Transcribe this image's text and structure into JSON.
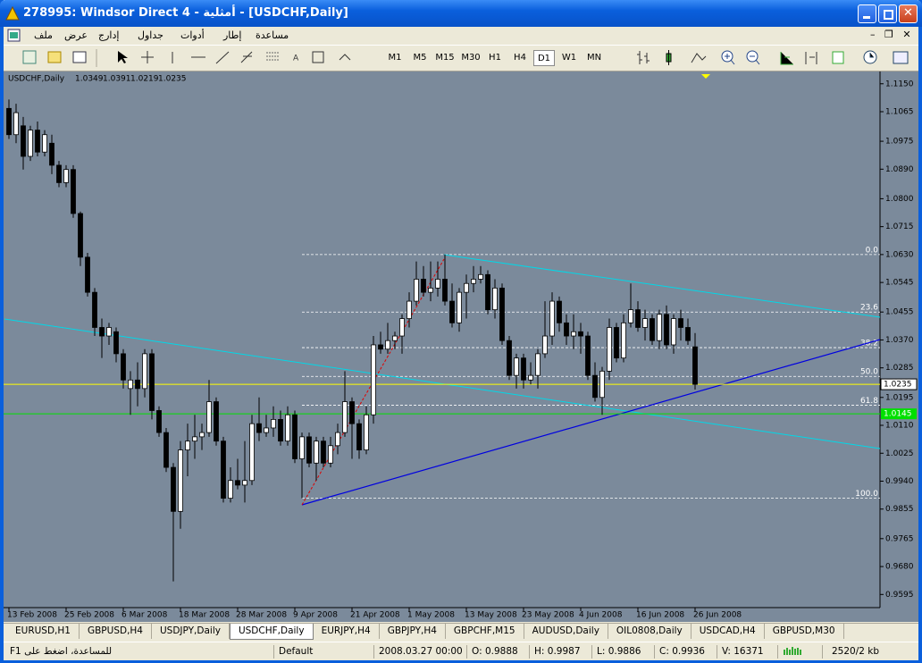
{
  "window": {
    "title": "278995: Windsor Direct 4 - أمثلية - [USDCHF,Daily]"
  },
  "menu": [
    "ملف",
    "عرض",
    "إدارج",
    "جداول",
    "أدوات",
    "إطار",
    "مساعدة"
  ],
  "toolbar": {
    "periods": [
      "M1",
      "M5",
      "M15",
      "M30",
      "H1",
      "H4",
      "D1",
      "W1",
      "MN"
    ],
    "active_period": 6
  },
  "chart_data": {
    "type": "candlestick",
    "title": "USDCHF,Daily",
    "x": [
      "13 Feb 2008",
      null,
      null,
      null,
      null,
      null,
      null,
      null,
      "25 Feb 2008",
      null,
      null,
      null,
      null,
      null,
      null,
      null,
      "6 Mar 2008",
      null,
      null,
      null,
      null,
      null,
      null,
      null,
      "18 Mar 2008",
      null,
      null,
      null,
      null,
      null,
      null,
      null,
      "28 Mar 2008",
      null,
      null,
      null,
      null,
      null,
      null,
      null,
      "9 Apr 2008",
      null,
      null,
      null,
      null,
      null,
      null,
      null,
      "21 Apr 2008",
      null,
      null,
      null,
      null,
      null,
      null,
      null,
      "1 May 2008",
      null,
      null,
      null,
      null,
      null,
      null,
      null,
      "13 May 2008",
      null,
      null,
      null,
      null,
      null,
      null,
      null,
      "23 May 2008",
      null,
      null,
      null,
      null,
      null,
      null,
      null,
      "4 Jun 2008",
      null,
      null,
      null,
      null,
      null,
      null,
      null,
      "16 Jun 2008",
      null,
      null,
      null,
      null,
      null,
      null,
      null,
      "26 Jun 2008"
    ],
    "open": [
      1.1075,
      1.0995,
      1.1022,
      1.0929,
      1.1009,
      1.0942,
      1.0969,
      1.0902,
      1.0849,
      1.0889,
      1.0755,
      1.0622,
      1.0515,
      1.0408,
      1.0382,
      1.0395,
      1.0328,
      1.0222,
      1.0248,
      1.0222,
      1.0328,
      1.0155,
      1.0088,
      0.9982,
      0.9848,
      1.0035,
      1.0062,
      1.0075,
      1.0088,
      1.0182,
      1.0062,
      0.9888,
      0.9942,
      0.9928,
      0.9942,
      1.0115,
      1.0088,
      1.0102,
      1.0128,
      1.0062,
      1.0142,
      1.0008,
      1.0075,
      0.9995,
      1.0062,
      0.9995,
      1.0048,
      1.0088,
      1.0182,
      1.0115,
      1.0035,
      1.0142,
      1.0355,
      1.0342,
      1.0368,
      1.0382,
      1.0435,
      1.0488,
      1.0555,
      1.0515,
      1.0528,
      1.0555,
      1.0488,
      1.0422,
      1.0515,
      1.0542,
      1.0555,
      1.0569,
      1.0462,
      1.0528,
      1.0368,
      1.0262,
      1.0315,
      1.0248,
      1.0262,
      1.0328,
      1.0382,
      1.0488,
      1.0422,
      1.0382,
      1.0395,
      1.0382,
      1.0262,
      1.0195,
      1.0275,
      1.0408,
      1.0315,
      1.0422,
      1.0462,
      1.0408,
      1.0435,
      1.0368,
      1.0448,
      1.0355,
      1.0435,
      1.0408,
      1.0349
    ],
    "high": [
      1.1102,
      1.1089,
      1.1049,
      1.1022,
      1.1035,
      1.1009,
      1.0995,
      1.0915,
      1.0902,
      1.0902,
      1.0761,
      1.0635,
      1.0528,
      1.0435,
      1.0422,
      1.0408,
      1.0342,
      1.0275,
      1.0302,
      1.0342,
      1.0342,
      1.0168,
      1.0102,
      0.9995,
      1.0062,
      1.0115,
      1.0142,
      1.0115,
      1.0248,
      1.0195,
      1.0075,
      0.9982,
      1.0008,
      1.0062,
      1.0142,
      1.0195,
      1.0142,
      1.0168,
      1.0155,
      1.0168,
      1.0155,
      1.0088,
      1.0088,
      1.0075,
      1.0075,
      1.0075,
      1.0115,
      1.0275,
      1.0195,
      1.0128,
      1.0168,
      1.0382,
      1.0395,
      1.0422,
      1.0395,
      1.0448,
      1.0515,
      1.0609,
      1.0595,
      1.0609,
      1.0609,
      1.063,
      1.0542,
      1.0528,
      1.0569,
      1.0595,
      1.0595,
      1.0582,
      1.0555,
      1.0542,
      1.0382,
      1.0328,
      1.0328,
      1.0302,
      1.0342,
      1.0488,
      1.0515,
      1.0502,
      1.0448,
      1.0448,
      1.0422,
      1.0395,
      1.0302,
      1.0288,
      1.0435,
      1.0422,
      1.0448,
      1.0542,
      1.0488,
      1.0462,
      1.0448,
      1.0462,
      1.0475,
      1.0448,
      1.0462,
      1.0435,
      1.0391
    ],
    "low": [
      1.0982,
      1.0969,
      1.0889,
      1.0915,
      1.0929,
      1.0929,
      1.0875,
      1.0835,
      1.0835,
      1.0742,
      1.0595,
      1.0502,
      1.0382,
      1.0315,
      1.0355,
      1.0302,
      1.0222,
      1.0142,
      1.0168,
      1.0195,
      1.0128,
      1.0075,
      0.9968,
      0.9635,
      0.9795,
      0.9955,
      1.0008,
      1.0035,
      1.0075,
      1.0048,
      0.9875,
      0.9875,
      0.9915,
      0.9875,
      0.9928,
      1.0062,
      1.0075,
      1.0075,
      1.0048,
      1.0048,
      0.9995,
      0.9888,
      0.9982,
      0.9942,
      0.9982,
      0.9982,
      1.0022,
      1.0075,
      1.0008,
      1.0008,
      1.0022,
      1.0115,
      1.0328,
      1.0328,
      1.0342,
      1.0328,
      1.0408,
      1.0475,
      1.0502,
      1.0488,
      1.0502,
      1.0475,
      1.0408,
      1.0395,
      1.0435,
      1.0515,
      1.0542,
      1.0448,
      1.0435,
      1.0355,
      1.0248,
      1.0222,
      1.0222,
      1.0235,
      1.0222,
      1.0315,
      1.0355,
      1.0395,
      1.0355,
      1.0342,
      1.0328,
      1.0248,
      1.0182,
      1.0142,
      1.0248,
      1.0302,
      1.0302,
      1.0408,
      1.0395,
      1.0368,
      1.0355,
      1.0342,
      1.0342,
      1.0328,
      1.0368,
      1.0355,
      1.0219
    ],
    "close": [
      1.0995,
      1.1062,
      1.0929,
      1.1009,
      1.0942,
      1.0995,
      1.0902,
      1.0849,
      1.0889,
      1.0755,
      1.0622,
      1.0515,
      1.0408,
      1.0382,
      1.0408,
      1.0328,
      1.0248,
      1.0248,
      1.0222,
      1.0328,
      1.0155,
      1.0088,
      0.9982,
      0.9848,
      1.0035,
      1.0062,
      1.0075,
      1.0088,
      1.0182,
      1.0062,
      0.9888,
      0.9942,
      0.9928,
      0.9942,
      1.0115,
      1.0088,
      1.0102,
      1.0128,
      1.0062,
      1.0142,
      1.0008,
      1.0075,
      0.9995,
      1.0062,
      0.9995,
      1.0048,
      1.0088,
      1.0182,
      1.0115,
      1.0035,
      1.0142,
      1.0355,
      1.0342,
      1.0368,
      1.0382,
      1.0435,
      1.0488,
      1.0555,
      1.0515,
      1.0528,
      1.0555,
      1.0488,
      1.0422,
      1.0515,
      1.0542,
      1.0555,
      1.0569,
      1.0462,
      1.0528,
      1.0368,
      1.0262,
      1.0315,
      1.0248,
      1.0262,
      1.0328,
      1.0382,
      1.0488,
      1.0422,
      1.0382,
      1.0395,
      1.0382,
      1.0262,
      1.0195,
      1.0275,
      1.0408,
      1.0315,
      1.0422,
      1.0462,
      1.0408,
      1.0435,
      1.0368,
      1.0448,
      1.0355,
      1.0435,
      1.0408,
      1.0368,
      1.0235
    ],
    "ylim": [
      0.9555,
      1.1182
    ],
    "yticks": [
      {
        "value": 1.115,
        "label": "1.1150"
      },
      1.1065,
      1.0975,
      {
        "value": 1.089,
        "label": "1.0890"
      },
      {
        "value": 1.08,
        "label": "1.0800"
      },
      1.0715,
      {
        "value": 1.063,
        "label": "1.0630"
      },
      1.0545,
      1.0455,
      {
        "value": 1.037,
        "label": "1.0370"
      },
      1.0285,
      1.0195,
      {
        "value": 1.011,
        "label": "1.0110"
      },
      1.0025,
      {
        "value": 0.994,
        "label": "0.9940"
      },
      0.9855,
      0.9765,
      {
        "value": 0.968,
        "label": "0.9680"
      },
      0.9595
    ],
    "background": "#7b8a9b",
    "bull_color": "#ffffff",
    "bear_color": "#000000",
    "fibo": {
      "high": 1.063,
      "low": 0.9888,
      "color": "#ffffff",
      "levels": [
        {
          "value": 0,
          "label": "0.0"
        },
        23.6,
        38.2,
        {
          "value": 50,
          "label": "50.0"
        },
        61.8,
        {
          "value": 100,
          "label": "100.0"
        }
      ]
    },
    "hlines": [
      {
        "value": 1.0235,
        "color": "#ffff00"
      },
      {
        "value": 1.0145,
        "color": "#00e000"
      }
    ]
  },
  "tabs": [
    "EURUSD,H1",
    "GBPUSD,H4",
    "USDJPY,Daily",
    "USDCHF,Daily",
    "EURJPY,H4",
    "GBPJPY,H4",
    "GBPCHF,M15",
    "AUDUSD,Daily",
    "OIL0808,Daily",
    "USDCAD,H4",
    "GBPUSD,M30"
  ],
  "active_tab": 3,
  "status": {
    "help": "للمساعدة، اضغط على F1",
    "profile": "Default",
    "time": "2008.03.27 00:00",
    "open": "O: 0.9888",
    "high": "H: 0.9987",
    "low": "L: 0.9886",
    "close": "C: 0.9936",
    "volume": "V: 16371",
    "traffic": "2520/2 kb"
  }
}
